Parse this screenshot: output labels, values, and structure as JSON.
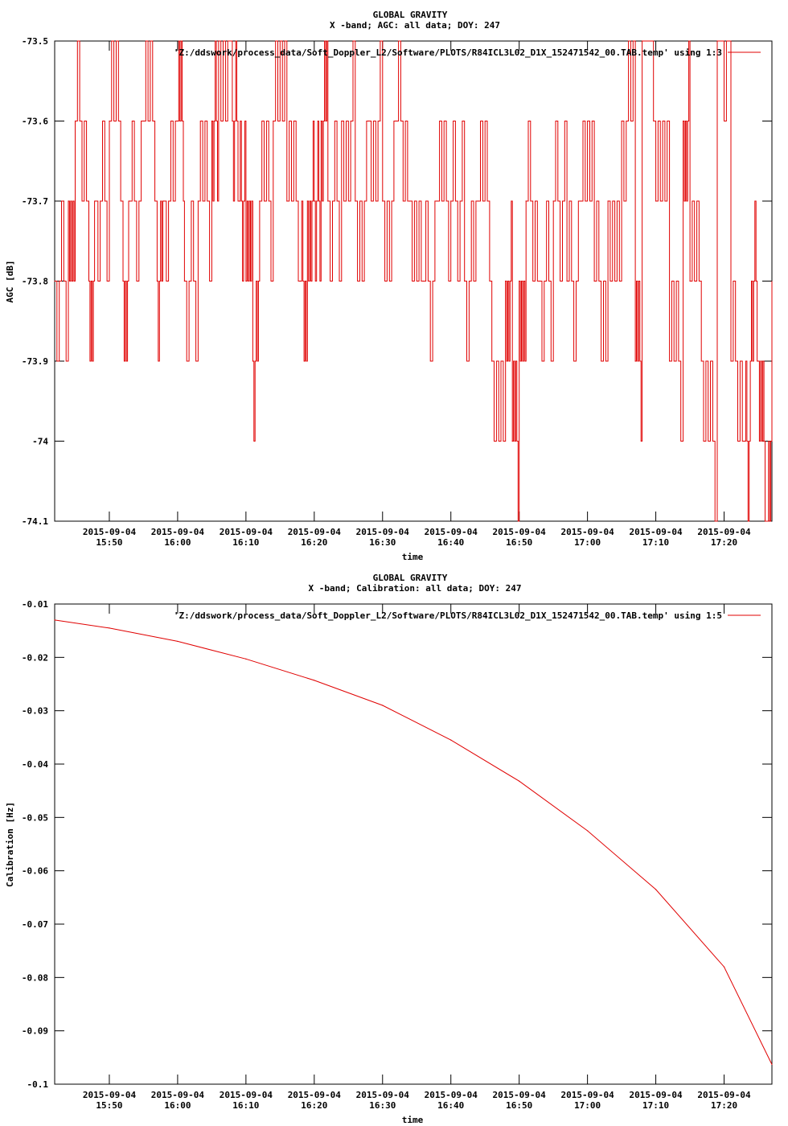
{
  "colors": {
    "series": "#e00000",
    "axis": "#000000",
    "background": "#ffffff"
  },
  "chart_data": [
    {
      "type": "line",
      "title": "GLOBAL GRAVITY",
      "subtitle": "X -band; AGC: all data; DOY: 247",
      "xlabel": "time",
      "ylabel": "AGC [dB]",
      "legend": "'Z:/ddswork/process_data/Soft_Doppler_L2/Software/PLOTS/R84ICL3L02_D1X_152471542_00.TAB.temp' using 1:3",
      "legend_position": "top-right",
      "grid": false,
      "xlim": [
        "2015-09-04 15:42:00",
        "2015-09-04 17:27:00"
      ],
      "ylim": [
        -74.1,
        -73.5
      ],
      "ytick_labels": [
        "-73.5",
        "-73.6",
        "-73.7",
        "-73.8",
        "-73.9",
        "-74",
        "-74.1"
      ],
      "yticks": [
        -73.5,
        -73.6,
        -73.7,
        -73.8,
        -73.9,
        -74.0,
        -74.1
      ],
      "xtick_dates": [
        "2015-09-04",
        "2015-09-04",
        "2015-09-04",
        "2015-09-04",
        "2015-09-04",
        "2015-09-04",
        "2015-09-04",
        "2015-09-04",
        "2015-09-04",
        "2015-09-04"
      ],
      "xtick_times": [
        "15:50",
        "16:00",
        "16:10",
        "16:20",
        "16:30",
        "16:40",
        "16:50",
        "17:00",
        "17:10",
        "17:20"
      ],
      "series": [
        {
          "values_description_note": "",
          "x": [
            "15:42",
            "15:44",
            "15:45",
            "15:47",
            "15:48",
            "15:50",
            "15:52",
            "15:53",
            "15:55",
            "15:57",
            "15:58",
            "16:00",
            "16:01",
            "16:03",
            "16:05",
            "16:06",
            "16:08",
            "16:09",
            "16:10",
            "16:11",
            "16:12",
            "16:14",
            "16:16",
            "16:18",
            "16:19",
            "16:20",
            "16:21",
            "16:22",
            "16:24",
            "16:26",
            "16:28",
            "16:30",
            "16:32",
            "16:34",
            "16:36",
            "16:38",
            "16:40",
            "16:42",
            "16:44",
            "16:46",
            "16:48",
            "16:49",
            "16:50",
            "16:51",
            "16:53",
            "16:55",
            "16:57",
            "16:59",
            "17:01",
            "17:03",
            "17:05",
            "17:07",
            "17:08",
            "17:10",
            "17:12",
            "17:14",
            "17:15",
            "17:17",
            "17:19",
            "17:21",
            "17:23",
            "17:24",
            "17:25",
            "17:26",
            "17:27"
          ],
          "y": [
            -73.8,
            -73.7,
            -73.6,
            -73.8,
            -73.7,
            -73.6,
            -73.8,
            -73.7,
            -73.6,
            -73.8,
            -73.7,
            -73.6,
            -73.8,
            -73.7,
            -73.6,
            -73.5,
            -73.6,
            -73.7,
            -73.8,
            -73.9,
            -73.7,
            -73.6,
            -73.7,
            -73.8,
            -73.7,
            -73.7,
            -73.6,
            -73.7,
            -73.6,
            -73.7,
            -73.6,
            -73.7,
            -73.6,
            -73.7,
            -73.8,
            -73.7,
            -73.7,
            -73.8,
            -73.7,
            -73.9,
            -73.8,
            -74.0,
            -73.8,
            -73.7,
            -73.8,
            -73.7,
            -73.8,
            -73.7,
            -73.8,
            -73.7,
            -73.6,
            -73.9,
            -73.5,
            -73.7,
            -73.9,
            -73.6,
            -73.8,
            -74.0,
            -73.5,
            -73.9,
            -74.0,
            -73.8,
            -73.9,
            -74.1,
            -73.9
          ]
        }
      ]
    },
    {
      "type": "line",
      "title": "GLOBAL GRAVITY",
      "subtitle": "X -band; Calibration: all data; DOY: 247",
      "xlabel": "time",
      "ylabel": "Calibration [Hz]",
      "legend": "'Z:/ddswork/process_data/Soft_Doppler_L2/Software/PLOTS/R84ICL3L02_D1X_152471542_00.TAB.temp' using 1:5",
      "legend_position": "top-right",
      "grid": false,
      "xlim": [
        "2015-09-04 15:42:00",
        "2015-09-04 17:27:00"
      ],
      "ylim": [
        -0.1,
        -0.01
      ],
      "ytick_labels": [
        "-0.01",
        "-0.02",
        "-0.03",
        "-0.04",
        "-0.05",
        "-0.06",
        "-0.07",
        "-0.08",
        "-0.09",
        "-0.1"
      ],
      "yticks": [
        -0.01,
        -0.02,
        -0.03,
        -0.04,
        -0.05,
        -0.06,
        -0.07,
        -0.08,
        -0.09,
        -0.1
      ],
      "xtick_dates": [
        "2015-09-04",
        "2015-09-04",
        "2015-09-04",
        "2015-09-04",
        "2015-09-04",
        "2015-09-04",
        "2015-09-04",
        "2015-09-04",
        "2015-09-04",
        "2015-09-04"
      ],
      "xtick_times": [
        "15:50",
        "16:00",
        "16:10",
        "16:20",
        "16:30",
        "16:40",
        "16:50",
        "17:00",
        "17:10",
        "17:20"
      ],
      "series": [
        {
          "x": [
            "15:42",
            "15:50",
            "16:00",
            "16:10",
            "16:20",
            "16:30",
            "16:40",
            "16:50",
            "17:00",
            "17:10",
            "17:20",
            "17:27"
          ],
          "y": [
            -0.013,
            -0.0145,
            -0.017,
            -0.0203,
            -0.0243,
            -0.029,
            -0.0355,
            -0.0432,
            -0.0525,
            -0.0635,
            -0.078,
            -0.0963
          ]
        }
      ]
    }
  ]
}
